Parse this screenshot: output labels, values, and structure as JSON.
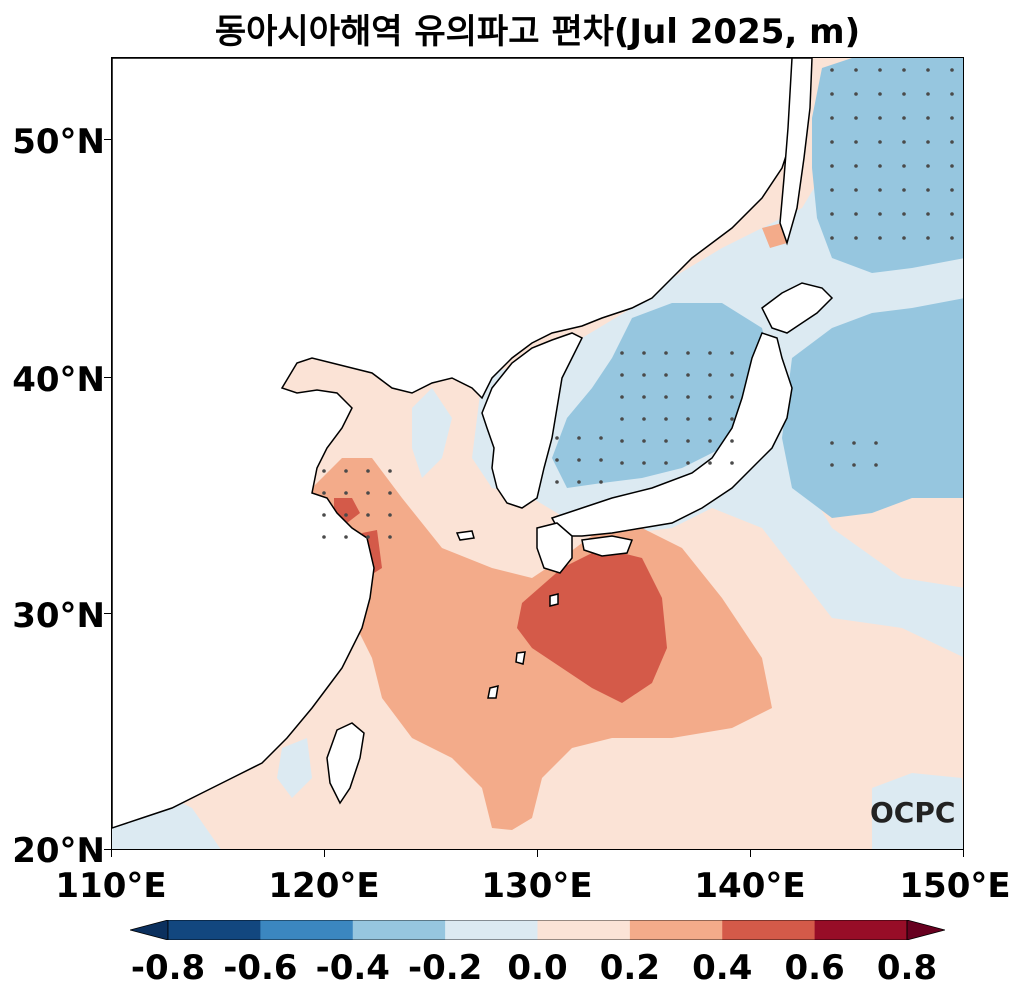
{
  "title": "동아시아해역 유의파고 편차(Jul 2025, m)",
  "logo": "OCPC",
  "axes": {
    "y_ticks": [
      "50°N",
      "40°N",
      "30°N",
      "20°N"
    ],
    "x_ticks": [
      "110°E",
      "120°E",
      "130°E",
      "140°E",
      "150°E"
    ],
    "lon_range": [
      110,
      150
    ],
    "lat_range": [
      20,
      53.4
    ]
  },
  "colorbar": {
    "labels": [
      "-0.8",
      "-0.6",
      "-0.4",
      "-0.2",
      "0.0",
      "0.2",
      "0.4",
      "0.6",
      "0.8"
    ],
    "levels": [
      -0.8,
      -0.6,
      -0.4,
      -0.2,
      0.0,
      0.2,
      0.4,
      0.6,
      0.8
    ],
    "colors": [
      "#12477f",
      "#3b87c0",
      "#96c6df",
      "#dceaf2",
      "#fbe3d6",
      "#f3ab8a",
      "#d45a49",
      "#970d27"
    ],
    "under_color": "#0b305e",
    "over_color": "#67001f"
  },
  "fill_colors": {
    "land": "#ffffff",
    "weak_neg": "#dceaf2",
    "mid_neg": "#96c6df",
    "weak_pos": "#fbe3d6",
    "mid_pos": "#f3ab8a",
    "strong_pos": "#d45a49",
    "stipple": "#4a4a4a"
  }
}
